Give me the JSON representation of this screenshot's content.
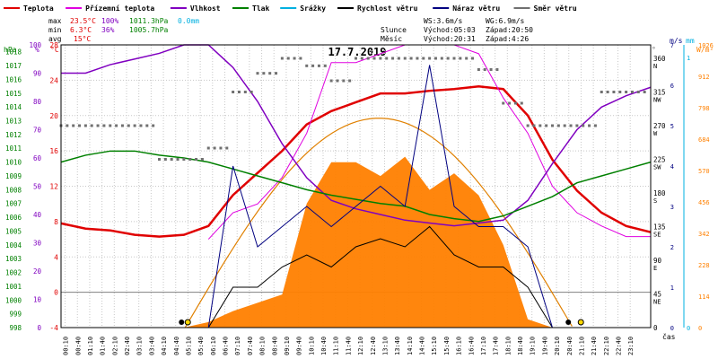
{
  "title": "17.7.2019",
  "legend": [
    {
      "label": "Teplota",
      "color": "#e00000"
    },
    {
      "label": "Přízemní teplota",
      "color": "#e000e0"
    },
    {
      "label": "Vlhkost",
      "color": "#8000c0"
    },
    {
      "label": "Tlak",
      "color": "#008000"
    },
    {
      "label": "Srážky",
      "color": "#00b0e0"
    },
    {
      "label": "Rychlost větru",
      "color": "#000000"
    },
    {
      "label": "Náraz větru",
      "color": "#000080"
    },
    {
      "label": "Směr větru",
      "color": "#707070"
    }
  ],
  "stats": {
    "max": {
      "label": "max",
      "temp": "23.5°C",
      "hum": "100%",
      "press": "1011.3hPa",
      "rain": "0.0mm"
    },
    "min": {
      "label": "min",
      "temp": "6.3°C",
      "hum": "36%",
      "press": "1005.7hPa"
    },
    "avg": {
      "label": "avg",
      "temp": "15°C"
    }
  },
  "info": {
    "ws": "WS:3.6m/s",
    "wg": "WG:6.9m/s",
    "sun_label": "Slunce",
    "sunrise": "Východ:05:03",
    "sunset": "Západ:20:50",
    "moon_label": "Měsíc",
    "moonrise": "Východ:20:31",
    "moonset": "Západ:4:26"
  },
  "axes": {
    "hpa_title": "hPa",
    "pct_title": "%",
    "c_title": "°C",
    "hpa_ticks": [
      "1018",
      "1017",
      "1016",
      "1015",
      "1014",
      "1013",
      "1012",
      "1011",
      "1010",
      "1009",
      "1008",
      "1007",
      "1006",
      "1005",
      "1004",
      "1003",
      "1002",
      "1001",
      "1000",
      "999",
      "998"
    ],
    "pct_ticks": [
      "100",
      "90",
      "80",
      "70",
      "60",
      "50",
      "40",
      "30",
      "20",
      "10",
      "0"
    ],
    "c_ticks": [
      "28",
      "24",
      "20",
      "16",
      "12",
      "8",
      "4",
      "0",
      "-4"
    ],
    "dir_title": "°",
    "dir_ticks": [
      {
        "v": "360",
        "l": "N"
      },
      {
        "v": "315",
        "l": "NW"
      },
      {
        "v": "270",
        "l": "W"
      },
      {
        "v": "225",
        "l": "SW"
      },
      {
        "v": "180",
        "l": "S"
      },
      {
        "v": "135",
        "l": "SE"
      },
      {
        "v": "90",
        "l": "E"
      },
      {
        "v": "45",
        "l": "NE"
      },
      {
        "v": "0",
        "l": ""
      }
    ],
    "ms_title": "m/s",
    "ms_ticks": [
      "7",
      "6",
      "5",
      "4",
      "3",
      "2",
      "1",
      "0"
    ],
    "mm_title": "mm",
    "mm_ticks": [
      "1",
      "0"
    ],
    "wm2_title": "W/m²",
    "wm2_ticks": [
      "1026",
      "912",
      "798",
      "684",
      "570",
      "456",
      "342",
      "228",
      "114",
      "0"
    ],
    "x_title": "čas",
    "x_ticks": [
      "00:10",
      "00:40",
      "01:10",
      "01:40",
      "02:10",
      "02:40",
      "03:10",
      "03:40",
      "04:10",
      "04:40",
      "05:10",
      "05:40",
      "06:10",
      "06:40",
      "07:10",
      "07:40",
      "08:10",
      "08:40",
      "09:10",
      "09:40",
      "10:10",
      "10:40",
      "11:10",
      "11:40",
      "12:10",
      "12:40",
      "13:10",
      "13:40",
      "14:10",
      "14:40",
      "15:10",
      "15:40",
      "16:10",
      "16:40",
      "17:10",
      "17:40",
      "18:10",
      "18:40",
      "19:10",
      "19:40",
      "20:10",
      "20:40",
      "21:10",
      "21:40",
      "22:10",
      "22:40",
      "23:10"
    ]
  },
  "colors": {
    "temp": "#e00000",
    "ground": "#e000e0",
    "hum": "#8000c0",
    "press": "#008000",
    "rain": "#00b0e0",
    "wind": "#000000",
    "gust": "#000080",
    "dir": "#707070",
    "solar": "#ff8000",
    "sunpath": "#e08000",
    "grid": "#c8c8c8",
    "zero": "#808080"
  },
  "chart_data": {
    "type": "line",
    "x_hours": [
      0,
      1,
      2,
      3,
      4,
      5,
      6,
      7,
      8,
      9,
      10,
      11,
      12,
      13,
      14,
      15,
      16,
      17,
      18,
      19,
      20,
      21,
      22,
      23,
      24
    ],
    "series": [
      {
        "name": "Teplota",
        "unit": "°C",
        "values": [
          7.8,
          7.2,
          7,
          6.5,
          6.3,
          6.5,
          7.5,
          11,
          13.5,
          16,
          19,
          20.5,
          21.5,
          22.5,
          22.5,
          22.8,
          23,
          23.3,
          23,
          20,
          15,
          11.5,
          9,
          7.5,
          6.8
        ]
      },
      {
        "name": "Přízemní teplota",
        "unit": "°C",
        "values": [
          null,
          null,
          null,
          null,
          null,
          null,
          6,
          9,
          10,
          13,
          18,
          26,
          26,
          27,
          28,
          28,
          28,
          27,
          22,
          18,
          12,
          9,
          7.5,
          6.3,
          6.3
        ]
      },
      {
        "name": "Vlhkost",
        "unit": "%",
        "values": [
          90,
          90,
          93,
          95,
          97,
          100,
          100,
          92,
          80,
          65,
          53,
          45,
          42,
          40,
          38,
          37,
          36,
          37,
          38,
          45,
          58,
          70,
          78,
          82,
          85
        ]
      },
      {
        "name": "Tlak",
        "unit": "hPa",
        "values": [
          1010,
          1010.5,
          1010.8,
          1010.8,
          1010.5,
          1010.3,
          1010,
          1009.5,
          1009,
          1008.5,
          1008,
          1007.6,
          1007.3,
          1007,
          1006.8,
          1006.2,
          1005.9,
          1005.7,
          1006.1,
          1006.8,
          1007.5,
          1008.5,
          1009,
          1009.5,
          1010
        ]
      },
      {
        "name": "Rychlost větru",
        "unit": "m/s",
        "values": [
          0,
          0,
          0,
          0,
          0,
          0,
          0,
          1,
          1,
          1.5,
          1.8,
          1.5,
          2,
          2.2,
          2,
          2.5,
          1.8,
          1.5,
          1.5,
          1,
          0,
          0,
          0,
          0,
          0
        ]
      },
      {
        "name": "Náraz větru",
        "unit": "m/s",
        "values": [
          0,
          0,
          0,
          0,
          0,
          0,
          0,
          4,
          2,
          2.5,
          3,
          2.5,
          3,
          3.5,
          3,
          6.5,
          3,
          2.5,
          2.5,
          2,
          0,
          0,
          0,
          0,
          0
        ]
      },
      {
        "name": "Směr větru",
        "unit": "°",
        "values": [
          270,
          270,
          270,
          270,
          225,
          225,
          240,
          315,
          340,
          360,
          350,
          330,
          360,
          360,
          360,
          360,
          360,
          345,
          300,
          270,
          270,
          270,
          315,
          315,
          315
        ]
      },
      {
        "name": "Sluneční záření",
        "unit": "W/m²",
        "values": [
          0,
          0,
          0,
          0,
          0,
          0,
          20,
          60,
          90,
          120,
          450,
          600,
          600,
          550,
          620,
          500,
          560,
          480,
          300,
          30,
          0,
          0,
          0,
          0,
          0
        ]
      }
    ],
    "sun_max_wm2": 760
  }
}
